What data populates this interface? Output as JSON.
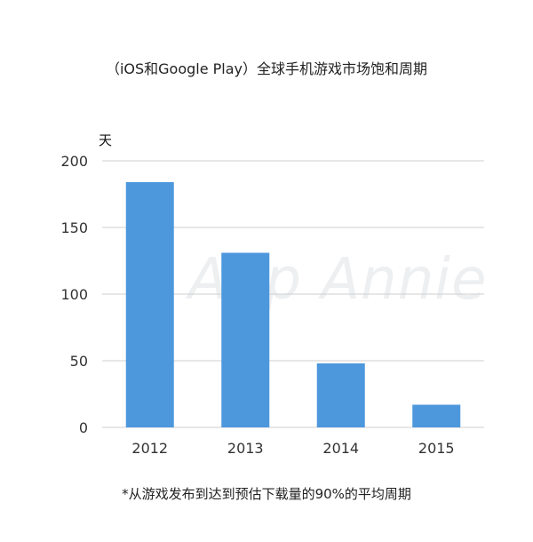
{
  "chart_data": {
    "type": "bar",
    "title": "（iOS和Google Play）全球手机游戏市场饱和周期",
    "ylabel": "天",
    "xlabel": "",
    "categories": [
      "2012",
      "2013",
      "2014",
      "2015"
    ],
    "values": [
      184,
      131,
      48,
      17
    ],
    "ylim": [
      0,
      200
    ],
    "yticks": [
      0,
      50,
      100,
      150,
      200
    ],
    "grid": true,
    "bar_color": "#4d98dd",
    "footnote": "*从游戏发布到达到预估下载量的90%的平均周期"
  },
  "watermark": "App Annie"
}
